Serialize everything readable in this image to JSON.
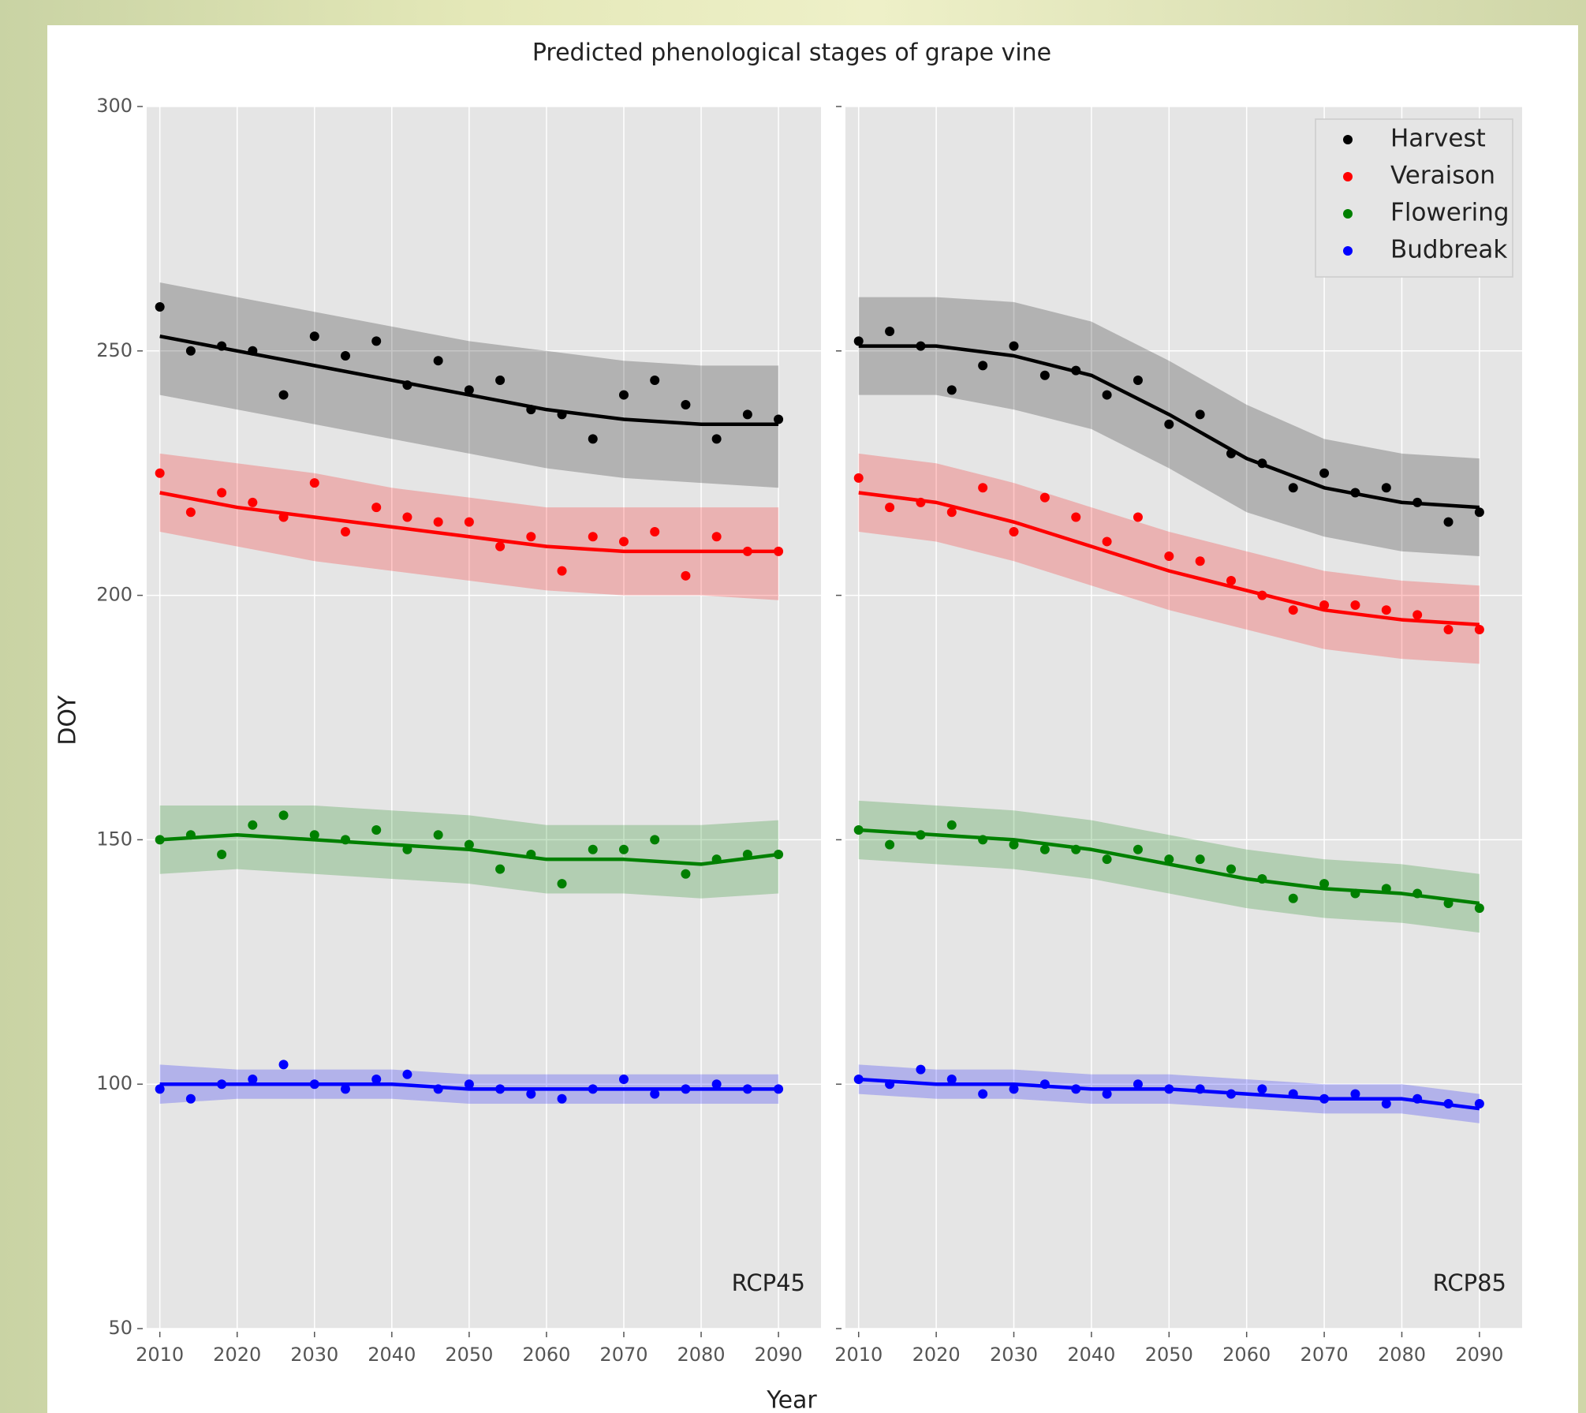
{
  "chart_data": [
    {
      "type": "scatter",
      "title": "Predicted phenological stages of grape vine",
      "x_label": "Year",
      "y_label": "DOY",
      "panel_label": "RCP45",
      "xlim": [
        2008.3,
        2095.5
      ],
      "ylim": [
        50,
        300
      ],
      "xticks": [
        2010,
        2020,
        2030,
        2040,
        2050,
        2060,
        2070,
        2080,
        2090
      ],
      "yticks": [
        50,
        100,
        150,
        200,
        250,
        300
      ],
      "show_ytick_labels": true,
      "grid": true,
      "legend": false,
      "x": [
        2010,
        2014,
        2018,
        2022,
        2026,
        2030,
        2034,
        2038,
        2042,
        2046,
        2050,
        2054,
        2058,
        2062,
        2066,
        2070,
        2074,
        2078,
        2082,
        2086,
        2090
      ],
      "trend_x": [
        2010,
        2020,
        2030,
        2040,
        2050,
        2060,
        2070,
        2080,
        2090
      ],
      "series": [
        {
          "color": "#000000",
          "values": [
            259,
            250,
            251,
            250,
            241,
            253,
            249,
            252,
            243,
            248,
            242,
            244,
            238,
            237,
            232,
            241,
            244,
            239,
            232,
            237,
            236
          ],
          "trend": [
            253,
            250,
            247,
            244,
            241,
            238,
            236,
            235,
            235
          ],
          "band_upper": [
            264,
            261,
            258,
            255,
            252,
            250,
            248,
            247,
            247
          ],
          "band_lower": [
            241,
            238,
            235,
            232,
            229,
            226,
            224,
            223,
            222
          ]
        },
        {
          "color": "#ff0000",
          "values": [
            225,
            217,
            221,
            219,
            216,
            223,
            213,
            218,
            216,
            215,
            215,
            210,
            212,
            205,
            212,
            211,
            213,
            204,
            212,
            209,
            209
          ],
          "trend": [
            221,
            218,
            216,
            214,
            212,
            210,
            209,
            209,
            209
          ],
          "band_upper": [
            229,
            227,
            225,
            222,
            220,
            218,
            218,
            218,
            218
          ],
          "band_lower": [
            213,
            210,
            207,
            205,
            203,
            201,
            200,
            200,
            199
          ]
        },
        {
          "color": "#008000",
          "values": [
            150,
            151,
            147,
            153,
            155,
            151,
            150,
            152,
            148,
            151,
            149,
            144,
            147,
            141,
            148,
            148,
            150,
            143,
            146,
            147,
            147
          ],
          "trend": [
            150,
            151,
            150,
            149,
            148,
            146,
            146,
            145,
            147
          ],
          "band_upper": [
            157,
            157,
            157,
            156,
            155,
            153,
            153,
            153,
            154
          ],
          "band_lower": [
            143,
            144,
            143,
            142,
            141,
            139,
            139,
            138,
            139
          ]
        },
        {
          "color": "#0000ff",
          "values": [
            99,
            97,
            100,
            101,
            104,
            100,
            99,
            101,
            102,
            99,
            100,
            99,
            98,
            97,
            99,
            101,
            98,
            99,
            100,
            99,
            99
          ],
          "trend": [
            100,
            100,
            100,
            100,
            99,
            99,
            99,
            99,
            99
          ],
          "band_upper": [
            104,
            103,
            103,
            103,
            102,
            102,
            102,
            102,
            102
          ],
          "band_lower": [
            96,
            97,
            97,
            97,
            96,
            96,
            96,
            96,
            96
          ]
        }
      ]
    },
    {
      "type": "scatter",
      "panel_label": "RCP85",
      "xlim": [
        2008.3,
        2095.5
      ],
      "ylim": [
        50,
        300
      ],
      "xticks": [
        2010,
        2020,
        2030,
        2040,
        2050,
        2060,
        2070,
        2080,
        2090
      ],
      "yticks": [
        50,
        100,
        150,
        200,
        250,
        300
      ],
      "show_ytick_labels": false,
      "grid": true,
      "legend": "upper right",
      "x": [
        2010,
        2014,
        2018,
        2022,
        2026,
        2030,
        2034,
        2038,
        2042,
        2046,
        2050,
        2054,
        2058,
        2062,
        2066,
        2070,
        2074,
        2078,
        2082,
        2086,
        2090
      ],
      "trend_x": [
        2010,
        2020,
        2030,
        2040,
        2050,
        2060,
        2070,
        2080,
        2090
      ],
      "series": [
        {
          "name": "Harvest",
          "color": "#000000",
          "values": [
            252,
            254,
            251,
            242,
            247,
            251,
            245,
            246,
            241,
            244,
            235,
            237,
            229,
            227,
            222,
            225,
            221,
            222,
            219,
            215,
            217
          ],
          "trend": [
            251,
            251,
            249,
            245,
            237,
            228,
            222,
            219,
            218
          ],
          "band_upper": [
            261,
            261,
            260,
            256,
            248,
            239,
            232,
            229,
            228
          ],
          "band_lower": [
            241,
            241,
            238,
            234,
            226,
            217,
            212,
            209,
            208
          ]
        },
        {
          "name": "Veraison",
          "color": "#ff0000",
          "values": [
            224,
            218,
            219,
            217,
            222,
            213,
            220,
            216,
            211,
            216,
            208,
            207,
            203,
            200,
            197,
            198,
            198,
            197,
            196,
            193,
            193
          ],
          "trend": [
            221,
            219,
            215,
            210,
            205,
            201,
            197,
            195,
            194
          ],
          "band_upper": [
            229,
            227,
            223,
            218,
            213,
            209,
            205,
            203,
            202
          ],
          "band_lower": [
            213,
            211,
            207,
            202,
            197,
            193,
            189,
            187,
            186
          ]
        },
        {
          "name": "Flowering",
          "color": "#008000",
          "values": [
            152,
            149,
            151,
            153,
            150,
            149,
            148,
            148,
            146,
            148,
            146,
            146,
            144,
            142,
            138,
            141,
            139,
            140,
            139,
            137,
            136
          ],
          "trend": [
            152,
            151,
            150,
            148,
            145,
            142,
            140,
            139,
            137
          ],
          "band_upper": [
            158,
            157,
            156,
            154,
            151,
            148,
            146,
            145,
            143
          ],
          "band_lower": [
            146,
            145,
            144,
            142,
            139,
            136,
            134,
            133,
            131
          ]
        },
        {
          "name": "Budbreak",
          "color": "#0000ff",
          "values": [
            101,
            100,
            103,
            101,
            98,
            99,
            100,
            99,
            98,
            100,
            99,
            99,
            98,
            99,
            98,
            97,
            98,
            96,
            97,
            96,
            96
          ],
          "trend": [
            101,
            100,
            100,
            99,
            99,
            98,
            97,
            97,
            95
          ],
          "band_upper": [
            104,
            103,
            103,
            102,
            102,
            101,
            100,
            100,
            98
          ],
          "band_lower": [
            98,
            97,
            97,
            96,
            96,
            95,
            94,
            94,
            92
          ]
        }
      ]
    }
  ]
}
